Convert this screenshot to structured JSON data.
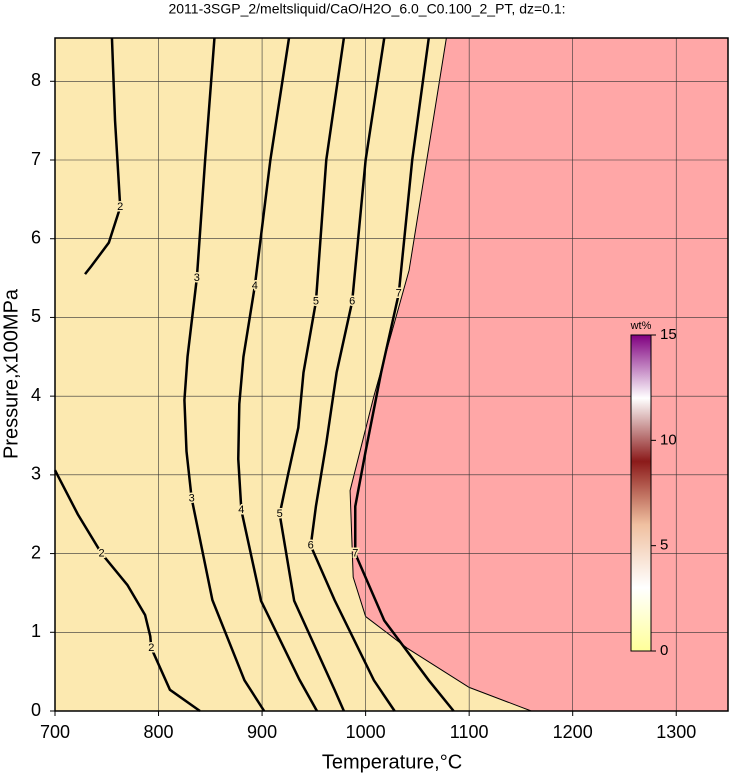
{
  "chart_data": {
    "type": "contour",
    "title": "2011-3SGP_2/meltsliquid/CaO/H2O_6.0_C0.100_2_PT, dz=0.1:",
    "xlabel": "Temperature,°C",
    "ylabel": "Pressure,x100MPa",
    "xlim": [
      700,
      1350
    ],
    "xticks": [
      700,
      800,
      900,
      1000,
      1100,
      1200,
      1300
    ],
    "ylim": [
      0,
      8.55
    ],
    "yticks": [
      0,
      1,
      2,
      3,
      4,
      5,
      6,
      7,
      8
    ],
    "grid": true,
    "background": "#fce9b0",
    "line_color": "#000000",
    "region": {
      "color": "#ffa7a7",
      "x": [
        1078,
        1042,
        1008,
        985,
        988,
        1000,
        1040,
        1100,
        1150,
        1160
      ],
      "y": [
        8.55,
        5.6,
        4.0,
        2.8,
        1.7,
        1.2,
        0.8,
        0.3,
        0.05,
        0
      ]
    },
    "contours": [
      {
        "level": 2,
        "x": [
          755,
          758,
          763,
          752,
          735,
          729
        ],
        "y": [
          8.55,
          7.5,
          6.4,
          5.95,
          5.65,
          5.55
        ]
      },
      {
        "level": 2,
        "x": [
          700,
          722,
          745,
          770,
          787,
          792,
          793,
          811,
          840
        ],
        "y": [
          3.06,
          2.5,
          2.0,
          1.6,
          1.22,
          0.95,
          0.8,
          0.27,
          0
        ]
      },
      {
        "level": 3,
        "x": [
          854,
          845,
          837,
          828,
          825,
          827,
          832,
          852,
          883,
          902
        ],
        "y": [
          8.55,
          7.0,
          5.5,
          4.5,
          3.95,
          3.3,
          2.7,
          1.41,
          0.39,
          0
        ]
      },
      {
        "level": 4,
        "x": [
          926,
          908,
          893,
          882,
          878,
          877,
          880,
          899,
          936,
          953
        ],
        "y": [
          8.55,
          7.0,
          5.4,
          4.5,
          3.9,
          3.2,
          2.55,
          1.4,
          0.4,
          0
        ]
      },
      {
        "level": 5,
        "x": [
          979,
          962,
          952,
          940,
          935,
          925,
          917,
          931,
          970,
          979
        ],
        "y": [
          8.55,
          7.0,
          5.2,
          4.3,
          3.6,
          3.0,
          2.5,
          1.4,
          0.27,
          0
        ]
      },
      {
        "level": 6,
        "x": [
          1018,
          1000,
          987,
          972,
          962,
          952,
          947,
          970,
          1008,
          1028
        ],
        "y": [
          8.55,
          7.0,
          5.2,
          4.3,
          3.4,
          2.6,
          2.1,
          1.41,
          0.39,
          0
        ]
      },
      {
        "level": 7,
        "x": [
          1061,
          1045,
          1032,
          1015,
          1000,
          990,
          990,
          1018,
          1061,
          1085
        ],
        "y": [
          8.55,
          7.0,
          5.3,
          4.3,
          3.3,
          2.6,
          2.0,
          1.15,
          0.39,
          0
        ]
      }
    ],
    "colorbar": {
      "label": "wt%",
      "lim": [
        0,
        15
      ],
      "ticks": [
        0,
        5,
        10,
        15
      ],
      "colors": [
        "#ffff99",
        "#ffffff",
        "#f0c0a0",
        "#8b1a1a",
        "#ffffff",
        "#800080"
      ]
    }
  }
}
